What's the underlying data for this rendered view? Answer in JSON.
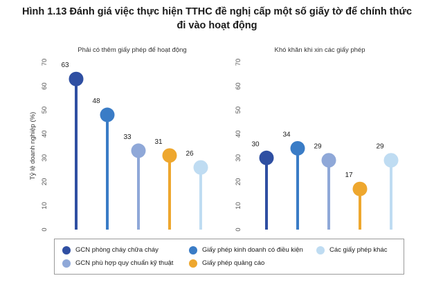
{
  "title": {
    "line1": "Hình 1.13 Đánh giá việc thực hiện TTHC đề nghị cấp một số giấy tờ để chính thức",
    "line2": "đi vào hoạt động"
  },
  "chart_data": {
    "type": "lollipop",
    "ylabel": "Tỷ lệ doanh nghiệp (%)",
    "ylim": [
      0,
      70
    ],
    "yticks": [
      "0",
      "10",
      "20",
      "30",
      "40",
      "50",
      "60",
      "70"
    ],
    "grid": false,
    "legend_position": "bottom",
    "panels": [
      {
        "title": "Phải có thêm giấy phép để hoạt động",
        "series": [
          {
            "name": "GCN phòng cháy chữa cháy",
            "value": 63,
            "label": "63",
            "color": "#2f4fa2"
          },
          {
            "name": "Giấy phép kinh doanh có điều kiện",
            "value": 48,
            "label": "48",
            "color": "#3a7cc6"
          },
          {
            "name": "GCN phù hợp quy chuẩn kỹ thuật",
            "value": 33,
            "label": "33",
            "color": "#8fa8d8"
          },
          {
            "name": "Giấy phép quảng cáo",
            "value": 31,
            "label": "31",
            "color": "#eea72e"
          },
          {
            "name": "Các giấy phép khác",
            "value": 26,
            "label": "26",
            "color": "#bfdcf2"
          }
        ]
      },
      {
        "title": "Khó khăn khi xin các giấy phép",
        "series": [
          {
            "name": "GCN phòng cháy chữa cháy",
            "value": 30,
            "label": "30",
            "color": "#2f4fa2"
          },
          {
            "name": "Giấy phép kinh doanh có điều kiện",
            "value": 34,
            "label": "34",
            "color": "#3a7cc6"
          },
          {
            "name": "GCN phù hợp quy chuẩn kỹ thuật",
            "value": 29,
            "label": "29",
            "color": "#8fa8d8"
          },
          {
            "name": "Giấy phép quảng cáo",
            "value": 17,
            "label": "17",
            "color": "#eea72e"
          },
          {
            "name": "Các giấy phép khác",
            "value": 29,
            "label": "29",
            "color": "#bfdcf2"
          }
        ]
      }
    ]
  },
  "legend": {
    "items": [
      {
        "label": "GCN phòng cháy chữa cháy",
        "color": "#2f4fa2"
      },
      {
        "label": "Giấy phép kinh doanh có điều kiện",
        "color": "#3a7cc6"
      },
      {
        "label": "Các giấy phép khác",
        "color": "#bfdcf2"
      },
      {
        "label": "GCN phù hợp quy chuẩn kỹ thuật",
        "color": "#8fa8d8"
      },
      {
        "label": "Giấy phép quảng cáo",
        "color": "#eea72e"
      }
    ]
  }
}
